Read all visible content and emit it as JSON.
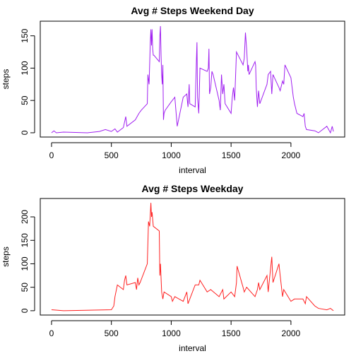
{
  "chart_data": [
    {
      "type": "line",
      "title": "Avg # Steps Weekend Day",
      "x_label": "interval",
      "y_label": "steps",
      "color": "#A020F0",
      "xlim": [
        -94.2,
        2449.2
      ],
      "ylim": [
        -6.6,
        172.6
      ],
      "xticks": [
        0,
        500,
        1000,
        1500,
        2000
      ],
      "yticks": [
        0,
        50,
        100,
        150
      ],
      "x": [
        0,
        20,
        40,
        100,
        300,
        400,
        450,
        500,
        530,
        550,
        600,
        620,
        630,
        700,
        730,
        750,
        800,
        805,
        815,
        825,
        830,
        835,
        840,
        845,
        850,
        855,
        900,
        905,
        910,
        915,
        920,
        925,
        930,
        935,
        940,
        950,
        1000,
        1030,
        1050,
        1100,
        1130,
        1140,
        1150,
        1155,
        1200,
        1210,
        1215,
        1220,
        1230,
        1240,
        1300,
        1310,
        1315,
        1320,
        1330,
        1340,
        1350,
        1400,
        1410,
        1420,
        1430,
        1440,
        1450,
        1500,
        1510,
        1520,
        1530,
        1545,
        1600,
        1610,
        1620,
        1630,
        1640,
        1645,
        1650,
        1700,
        1705,
        1710,
        1720,
        1730,
        1740,
        1800,
        1810,
        1830,
        1840,
        1850,
        1900,
        1910,
        1930,
        1940,
        1950,
        2000,
        2010,
        2020,
        2030,
        2050,
        2100,
        2110,
        2120,
        2130,
        2200,
        2230,
        2300,
        2330,
        2345,
        2355
      ],
      "values": [
        0,
        3,
        0,
        1,
        0,
        2,
        5,
        2,
        6,
        1,
        8,
        25,
        10,
        20,
        30,
        35,
        45,
        90,
        75,
        140,
        160,
        135,
        160,
        130,
        120,
        120,
        110,
        150,
        165,
        120,
        90,
        75,
        105,
        20,
        30,
        35,
        48,
        55,
        10,
        55,
        60,
        40,
        75,
        45,
        40,
        110,
        140,
        55,
        30,
        100,
        95,
        100,
        130,
        60,
        70,
        95,
        90,
        50,
        35,
        90,
        60,
        75,
        45,
        30,
        55,
        70,
        50,
        125,
        105,
        115,
        155,
        130,
        95,
        105,
        90,
        110,
        105,
        70,
        40,
        65,
        45,
        75,
        90,
        95,
        60,
        90,
        70,
        65,
        80,
        75,
        105,
        85,
        70,
        55,
        45,
        30,
        25,
        30,
        10,
        5,
        3,
        0,
        10,
        0,
        10,
        2
      ]
    },
    {
      "type": "line",
      "title": "Avg # Steps Weekday",
      "x_label": "interval",
      "y_label": "steps",
      "color": "#FF2020",
      "xlim": [
        -94.2,
        2449.2
      ],
      "ylim": [
        -9.2,
        239.2
      ],
      "xticks": [
        0,
        500,
        1000,
        1500,
        2000
      ],
      "yticks": [
        0,
        50,
        100,
        150,
        200
      ],
      "x": [
        0,
        100,
        500,
        520,
        530,
        550,
        600,
        610,
        620,
        630,
        700,
        710,
        720,
        730,
        740,
        800,
        810,
        820,
        830,
        835,
        840,
        850,
        900,
        905,
        910,
        920,
        930,
        940,
        1000,
        1010,
        1030,
        1100,
        1130,
        1140,
        1200,
        1230,
        1240,
        1300,
        1330,
        1400,
        1430,
        1440,
        1500,
        1530,
        1545,
        1550,
        1600,
        1610,
        1630,
        1700,
        1720,
        1730,
        1740,
        1800,
        1810,
        1830,
        1840,
        1850,
        1900,
        1910,
        1930,
        1940,
        2000,
        2030,
        2100,
        2120,
        2130,
        2200,
        2230,
        2300,
        2330,
        2355
      ],
      "values": [
        2,
        0,
        2,
        10,
        30,
        55,
        45,
        65,
        75,
        55,
        60,
        45,
        70,
        55,
        60,
        100,
        190,
        180,
        230,
        200,
        210,
        180,
        170,
        75,
        100,
        40,
        25,
        40,
        30,
        20,
        30,
        20,
        40,
        15,
        55,
        55,
        65,
        40,
        45,
        30,
        45,
        25,
        40,
        30,
        60,
        95,
        50,
        40,
        50,
        30,
        45,
        60,
        45,
        75,
        40,
        90,
        115,
        60,
        100,
        75,
        30,
        45,
        20,
        25,
        25,
        15,
        30,
        10,
        5,
        2,
        5,
        0
      ]
    }
  ]
}
